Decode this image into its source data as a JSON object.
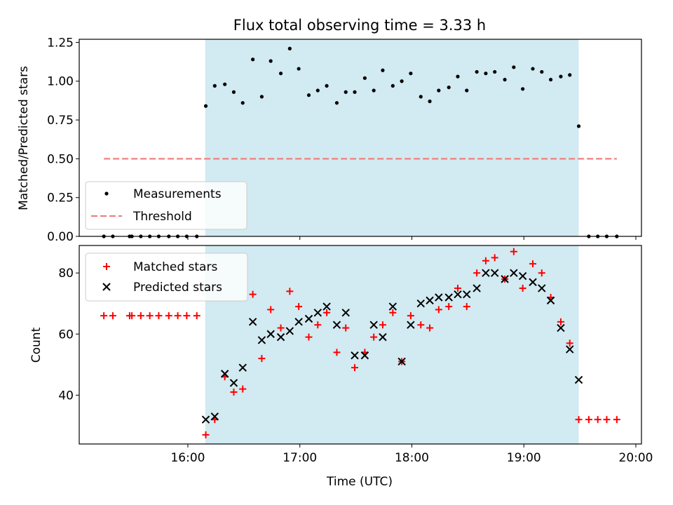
{
  "figure": {
    "title": "Flux total observing time = 3.33 h",
    "xlabel": "Time (UTC)",
    "colors": {
      "shade": "#add8e6",
      "measurement": "#000000",
      "threshold": "#f08080",
      "matched": "#ff0000",
      "predicted": "#000000"
    }
  },
  "chart_data": [
    {
      "type": "scatter",
      "ylabel": "Matched/Predicted stars",
      "ylim": [
        0,
        1.27
      ],
      "xlim": [
        15.03,
        20.05
      ],
      "yticks": [
        {
          "v": 0,
          "label": "0.00"
        },
        {
          "v": 0.25,
          "label": "0.25"
        },
        {
          "v": 0.5,
          "label": "0.50"
        },
        {
          "v": 0.75,
          "label": "0.75"
        },
        {
          "v": 1.0,
          "label": "1.00"
        },
        {
          "v": 1.25,
          "label": "1.25"
        }
      ],
      "shaded_span": [
        16.155,
        19.49
      ],
      "threshold": {
        "y": 0.5,
        "x": [
          15.25,
          19.83
        ]
      },
      "legend": {
        "position": "lower-left",
        "entries": [
          "Measurements",
          "Threshold"
        ]
      },
      "series": [
        {
          "name": "Measurements",
          "x": [
            15.25,
            15.33,
            15.48,
            15.5,
            15.58,
            15.66,
            15.74,
            15.83,
            15.91,
            15.99,
            16.08,
            16.16,
            16.24,
            16.33,
            16.41,
            16.49,
            16.58,
            16.66,
            16.74,
            16.83,
            16.91,
            16.99,
            17.08,
            17.16,
            17.24,
            17.33,
            17.41,
            17.49,
            17.58,
            17.66,
            17.74,
            17.83,
            17.91,
            17.99,
            18.08,
            18.16,
            18.24,
            18.33,
            18.41,
            18.49,
            18.58,
            18.66,
            18.74,
            18.83,
            18.91,
            18.99,
            19.08,
            19.16,
            19.24,
            19.33,
            19.41,
            19.49,
            19.58,
            19.66,
            19.74,
            19.83
          ],
          "y": [
            0,
            0,
            0,
            0,
            0,
            0,
            0,
            0,
            0,
            0,
            0,
            0.84,
            0.97,
            0.98,
            0.93,
            0.86,
            1.14,
            0.9,
            1.13,
            1.05,
            1.21,
            1.08,
            0.91,
            0.94,
            0.97,
            0.86,
            0.93,
            0.93,
            1.02,
            0.94,
            1.07,
            0.97,
            1.0,
            1.05,
            0.9,
            0.87,
            0.94,
            0.96,
            1.03,
            0.94,
            1.06,
            1.05,
            1.06,
            1.01,
            1.09,
            0.95,
            1.08,
            1.06,
            1.01,
            1.03,
            1.04,
            0.71,
            0,
            0,
            0,
            0
          ]
        }
      ]
    },
    {
      "type": "scatter",
      "ylabel": "Count",
      "ylim": [
        24,
        89
      ],
      "xlim": [
        15.03,
        20.05
      ],
      "yticks": [
        {
          "v": 40,
          "label": "40"
        },
        {
          "v": 60,
          "label": "60"
        },
        {
          "v": 80,
          "label": "80"
        }
      ],
      "xticks": [
        {
          "v": 16,
          "label": "16:00"
        },
        {
          "v": 17,
          "label": "17:00"
        },
        {
          "v": 18,
          "label": "18:00"
        },
        {
          "v": 19,
          "label": "19:00"
        },
        {
          "v": 20,
          "label": "20:00"
        }
      ],
      "shaded_span": [
        16.155,
        19.49
      ],
      "legend": {
        "position": "upper-left",
        "entries": [
          "Matched stars",
          "Predicted stars"
        ]
      },
      "series": [
        {
          "name": "Matched stars",
          "x": [
            15.25,
            15.33,
            15.48,
            15.5,
            15.58,
            15.66,
            15.74,
            15.83,
            15.91,
            15.99,
            16.08,
            16.16,
            16.24,
            16.33,
            16.41,
            16.49,
            16.58,
            16.66,
            16.74,
            16.83,
            16.91,
            16.99,
            17.08,
            17.16,
            17.24,
            17.33,
            17.41,
            17.49,
            17.58,
            17.66,
            17.74,
            17.83,
            17.91,
            17.99,
            18.08,
            18.16,
            18.24,
            18.33,
            18.41,
            18.49,
            18.58,
            18.66,
            18.74,
            18.83,
            18.91,
            18.99,
            19.08,
            19.16,
            19.24,
            19.33,
            19.41,
            19.49,
            19.58,
            19.66,
            19.74,
            19.83
          ],
          "y": [
            66,
            66,
            66,
            66,
            66,
            66,
            66,
            66,
            66,
            66,
            66,
            27,
            32,
            46,
            41,
            42,
            73,
            52,
            68,
            62,
            74,
            69,
            59,
            63,
            67,
            54,
            62,
            49,
            54,
            59,
            63,
            67,
            51,
            66,
            63,
            62,
            68,
            69,
            75,
            69,
            80,
            84,
            85,
            78,
            87,
            75,
            83,
            80,
            72,
            64,
            57,
            32,
            32,
            32,
            32,
            32
          ]
        },
        {
          "name": "Predicted stars",
          "x": [
            16.16,
            16.24,
            16.33,
            16.41,
            16.49,
            16.58,
            16.66,
            16.74,
            16.83,
            16.91,
            16.99,
            17.08,
            17.16,
            17.24,
            17.33,
            17.41,
            17.49,
            17.58,
            17.66,
            17.74,
            17.83,
            17.91,
            17.99,
            18.08,
            18.16,
            18.24,
            18.33,
            18.41,
            18.49,
            18.58,
            18.66,
            18.74,
            18.83,
            18.91,
            18.99,
            19.08,
            19.16,
            19.24,
            19.33,
            19.41,
            19.49
          ],
          "y": [
            32,
            33,
            47,
            44,
            49,
            64,
            58,
            60,
            59,
            61,
            64,
            65,
            67,
            69,
            63,
            67,
            53,
            53,
            63,
            59,
            69,
            51,
            63,
            70,
            71,
            72,
            72,
            73,
            73,
            75,
            80,
            80,
            78,
            80,
            79,
            77,
            75,
            71,
            62,
            55,
            45
          ]
        }
      ]
    }
  ]
}
